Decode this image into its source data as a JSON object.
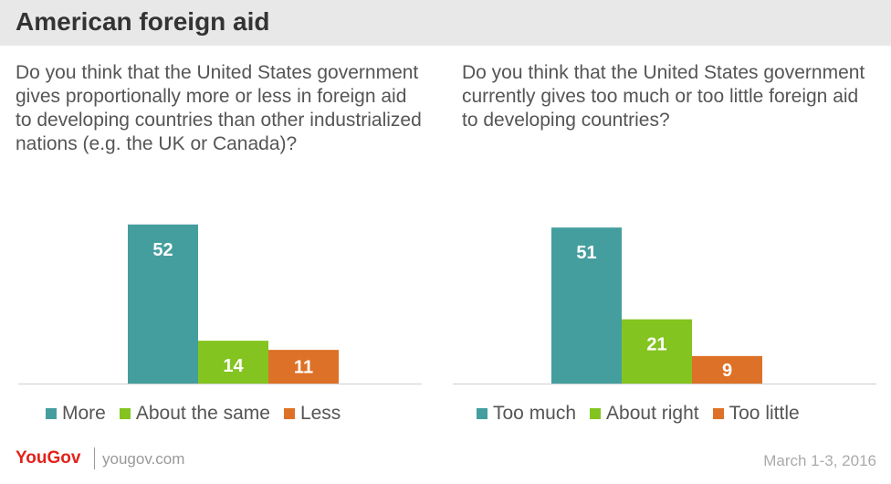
{
  "title": "American foreign aid",
  "colors": {
    "teal": "#459e9e",
    "green": "#84c421",
    "orange": "#dd7127",
    "axis": "#cfcfcf"
  },
  "chart_data": [
    {
      "type": "bar",
      "title": "Do you think that the United States government gives proportionally more or less in foreign aid to developing countries than other industrialized nations (e.g. the UK or Canada)?",
      "categories": [
        "More",
        "About the same",
        "Less"
      ],
      "values": [
        52,
        14,
        11
      ],
      "legend": [
        "More",
        "About the same",
        "Less"
      ],
      "legend_position": "bottom"
    },
    {
      "type": "bar",
      "title": "Do you think that the United States government currently gives too much or too little foreign aid to developing countries?",
      "categories": [
        "Too much",
        "About right",
        "Too little"
      ],
      "values": [
        51,
        21,
        9
      ],
      "legend": [
        "Too much",
        "About right",
        "Too little"
      ],
      "legend_position": "bottom"
    }
  ],
  "footer": {
    "brand": "YouGov",
    "url": "yougov.com",
    "date": "March 1-3, 2016"
  }
}
